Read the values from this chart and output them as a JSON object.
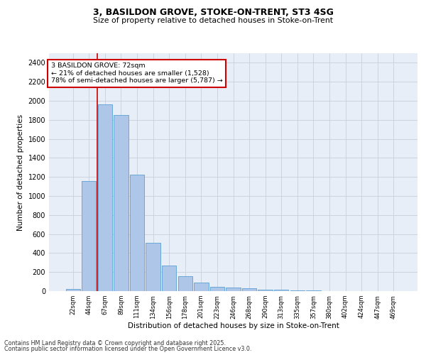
{
  "title1": "3, BASILDON GROVE, STOKE-ON-TRENT, ST3 4SG",
  "title2": "Size of property relative to detached houses in Stoke-on-Trent",
  "xlabel": "Distribution of detached houses by size in Stoke-on-Trent",
  "ylabel": "Number of detached properties",
  "categories": [
    "22sqm",
    "44sqm",
    "67sqm",
    "89sqm",
    "111sqm",
    "134sqm",
    "156sqm",
    "178sqm",
    "201sqm",
    "223sqm",
    "246sqm",
    "268sqm",
    "290sqm",
    "313sqm",
    "335sqm",
    "357sqm",
    "380sqm",
    "402sqm",
    "424sqm",
    "447sqm",
    "469sqm"
  ],
  "values": [
    25,
    1155,
    1960,
    1850,
    1225,
    510,
    270,
    155,
    88,
    48,
    38,
    30,
    18,
    15,
    10,
    5,
    2,
    2,
    1,
    1,
    1
  ],
  "bar_color": "#aec6e8",
  "bar_edge_color": "#5a9fd4",
  "red_line_bin_index": 2,
  "annotation_text": "3 BASILDON GROVE: 72sqm\n← 21% of detached houses are smaller (1,528)\n78% of semi-detached houses are larger (5,787) →",
  "annotation_box_color": "#ffffff",
  "annotation_box_edge_color": "#cc0000",
  "annotation_text_color": "#000000",
  "red_line_color": "#cc0000",
  "grid_color": "#c8d0dc",
  "bg_color": "#e8eef8",
  "footer1": "Contains HM Land Registry data © Crown copyright and database right 2025.",
  "footer2": "Contains public sector information licensed under the Open Government Licence v3.0.",
  "ylim": [
    0,
    2500
  ],
  "yticks": [
    0,
    200,
    400,
    600,
    800,
    1000,
    1200,
    1400,
    1600,
    1800,
    2000,
    2200,
    2400
  ]
}
